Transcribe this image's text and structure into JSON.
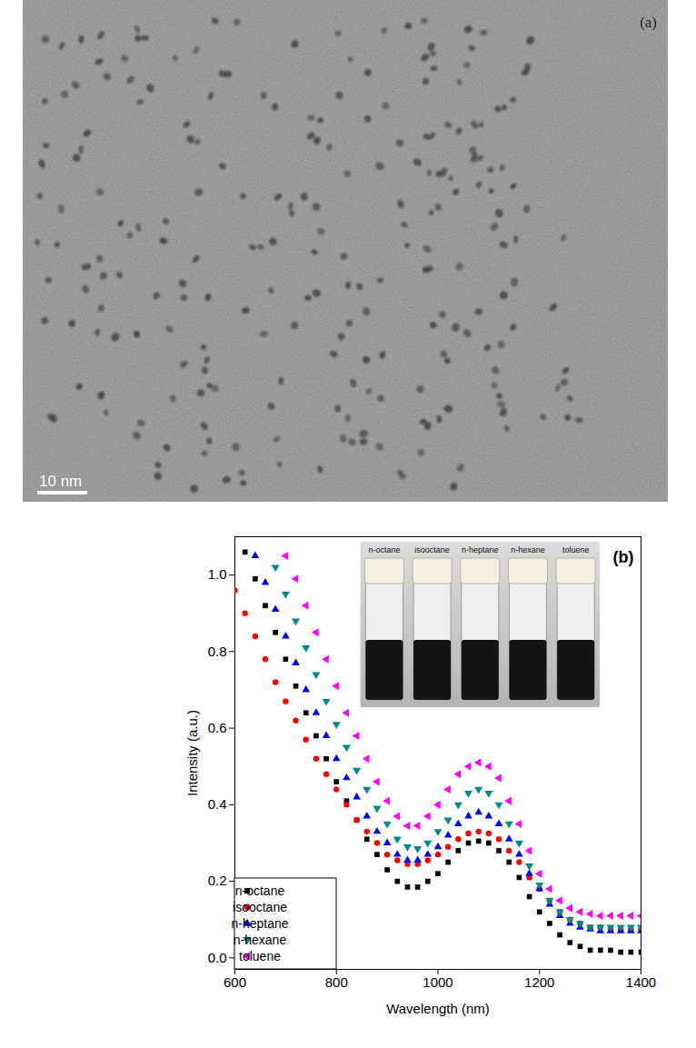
{
  "image_panel": {
    "label": "(a)",
    "scale_bar": "10 nm"
  },
  "chart_data": {
    "type": "scatter",
    "annotations": [
      "(b)"
    ],
    "xlabel": "Wavelength (nm)",
    "ylabel": "Intensity (a.u.)",
    "xlim": [
      600,
      1400
    ],
    "xticks": [
      600,
      800,
      1000,
      1200,
      1400
    ],
    "ylim": [
      -0.03,
      1.1
    ],
    "yticks": [
      {
        "value": 0,
        "label": "0.0"
      },
      {
        "value": 0.2,
        "label": "0.2"
      },
      {
        "value": 0.4,
        "label": "0.4"
      },
      {
        "value": 0.6,
        "label": "0.6"
      },
      {
        "value": 0.8,
        "label": "0.8"
      },
      {
        "value": 1.0,
        "label": "1.0"
      }
    ],
    "grid": false,
    "legend": "lower left",
    "inset": {
      "labels": [
        "n-octane",
        "isooctane",
        "n-heptane",
        "n-hexane",
        "toluene"
      ]
    },
    "x": [
      600,
      620,
      640,
      660,
      680,
      700,
      720,
      740,
      760,
      780,
      800,
      820,
      840,
      860,
      880,
      900,
      920,
      940,
      960,
      980,
      1000,
      1020,
      1040,
      1060,
      1080,
      1100,
      1120,
      1140,
      1160,
      1180,
      1200,
      1220,
      1240,
      1260,
      1280,
      1300,
      1320,
      1340,
      1360,
      1380,
      1400
    ],
    "series": [
      {
        "name": "n-octane",
        "color": "#000000",
        "marker": "square",
        "values": [
          null,
          1.06,
          0.99,
          0.92,
          0.85,
          0.78,
          0.71,
          0.64,
          0.58,
          0.52,
          0.46,
          0.41,
          0.36,
          0.31,
          0.27,
          0.23,
          0.2,
          0.185,
          0.185,
          0.2,
          0.22,
          0.25,
          0.28,
          0.3,
          0.305,
          0.3,
          0.28,
          0.25,
          0.21,
          0.16,
          0.12,
          0.09,
          0.06,
          0.04,
          0.03,
          0.02,
          0.02,
          0.02,
          0.015,
          0.015,
          0.015
        ]
      },
      {
        "name": "isooctane",
        "color": "#ff0000",
        "marker": "circle",
        "values": [
          0.96,
          0.9,
          0.84,
          0.78,
          0.72,
          0.67,
          0.62,
          0.57,
          0.52,
          0.48,
          0.44,
          0.4,
          0.36,
          0.33,
          0.3,
          0.27,
          0.255,
          0.245,
          0.245,
          0.255,
          0.27,
          0.29,
          0.31,
          0.325,
          0.33,
          0.325,
          0.31,
          0.28,
          0.25,
          0.21,
          0.18,
          0.15,
          0.12,
          0.1,
          0.09,
          0.08,
          0.08,
          0.075,
          0.075,
          0.075,
          0.075
        ]
      },
      {
        "name": "n-heptane",
        "color": "#0000ff",
        "marker": "triangle-up",
        "values": [
          null,
          null,
          1.05,
          0.98,
          0.91,
          0.84,
          0.77,
          0.7,
          0.64,
          0.58,
          0.52,
          0.47,
          0.42,
          0.37,
          0.33,
          0.3,
          0.27,
          0.255,
          0.255,
          0.27,
          0.29,
          0.32,
          0.35,
          0.37,
          0.38,
          0.37,
          0.35,
          0.31,
          0.27,
          0.22,
          0.18,
          0.14,
          0.11,
          0.09,
          0.08,
          0.075,
          0.07,
          0.07,
          0.07,
          0.07,
          0.07
        ]
      },
      {
        "name": "n-hexane",
        "color": "#008b8b",
        "marker": "triangle-down",
        "values": [
          null,
          null,
          null,
          null,
          1.02,
          0.95,
          0.88,
          0.81,
          0.74,
          0.67,
          0.61,
          0.55,
          0.49,
          0.44,
          0.39,
          0.35,
          0.31,
          0.29,
          0.285,
          0.3,
          0.33,
          0.36,
          0.4,
          0.43,
          0.44,
          0.43,
          0.4,
          0.35,
          0.3,
          0.24,
          0.19,
          0.15,
          0.12,
          0.1,
          0.09,
          0.08,
          0.08,
          0.08,
          0.08,
          0.08,
          0.08
        ]
      },
      {
        "name": "toluene",
        "color": "#ff00ff",
        "marker": "triangle-left",
        "values": [
          null,
          null,
          null,
          null,
          null,
          1.05,
          0.99,
          0.92,
          0.85,
          0.78,
          0.71,
          0.64,
          0.58,
          0.52,
          0.46,
          0.41,
          0.37,
          0.345,
          0.345,
          0.37,
          0.4,
          0.44,
          0.48,
          0.5,
          0.51,
          0.5,
          0.47,
          0.41,
          0.35,
          0.28,
          0.22,
          0.18,
          0.15,
          0.13,
          0.12,
          0.115,
          0.11,
          0.11,
          0.11,
          0.11,
          0.11
        ]
      }
    ]
  }
}
